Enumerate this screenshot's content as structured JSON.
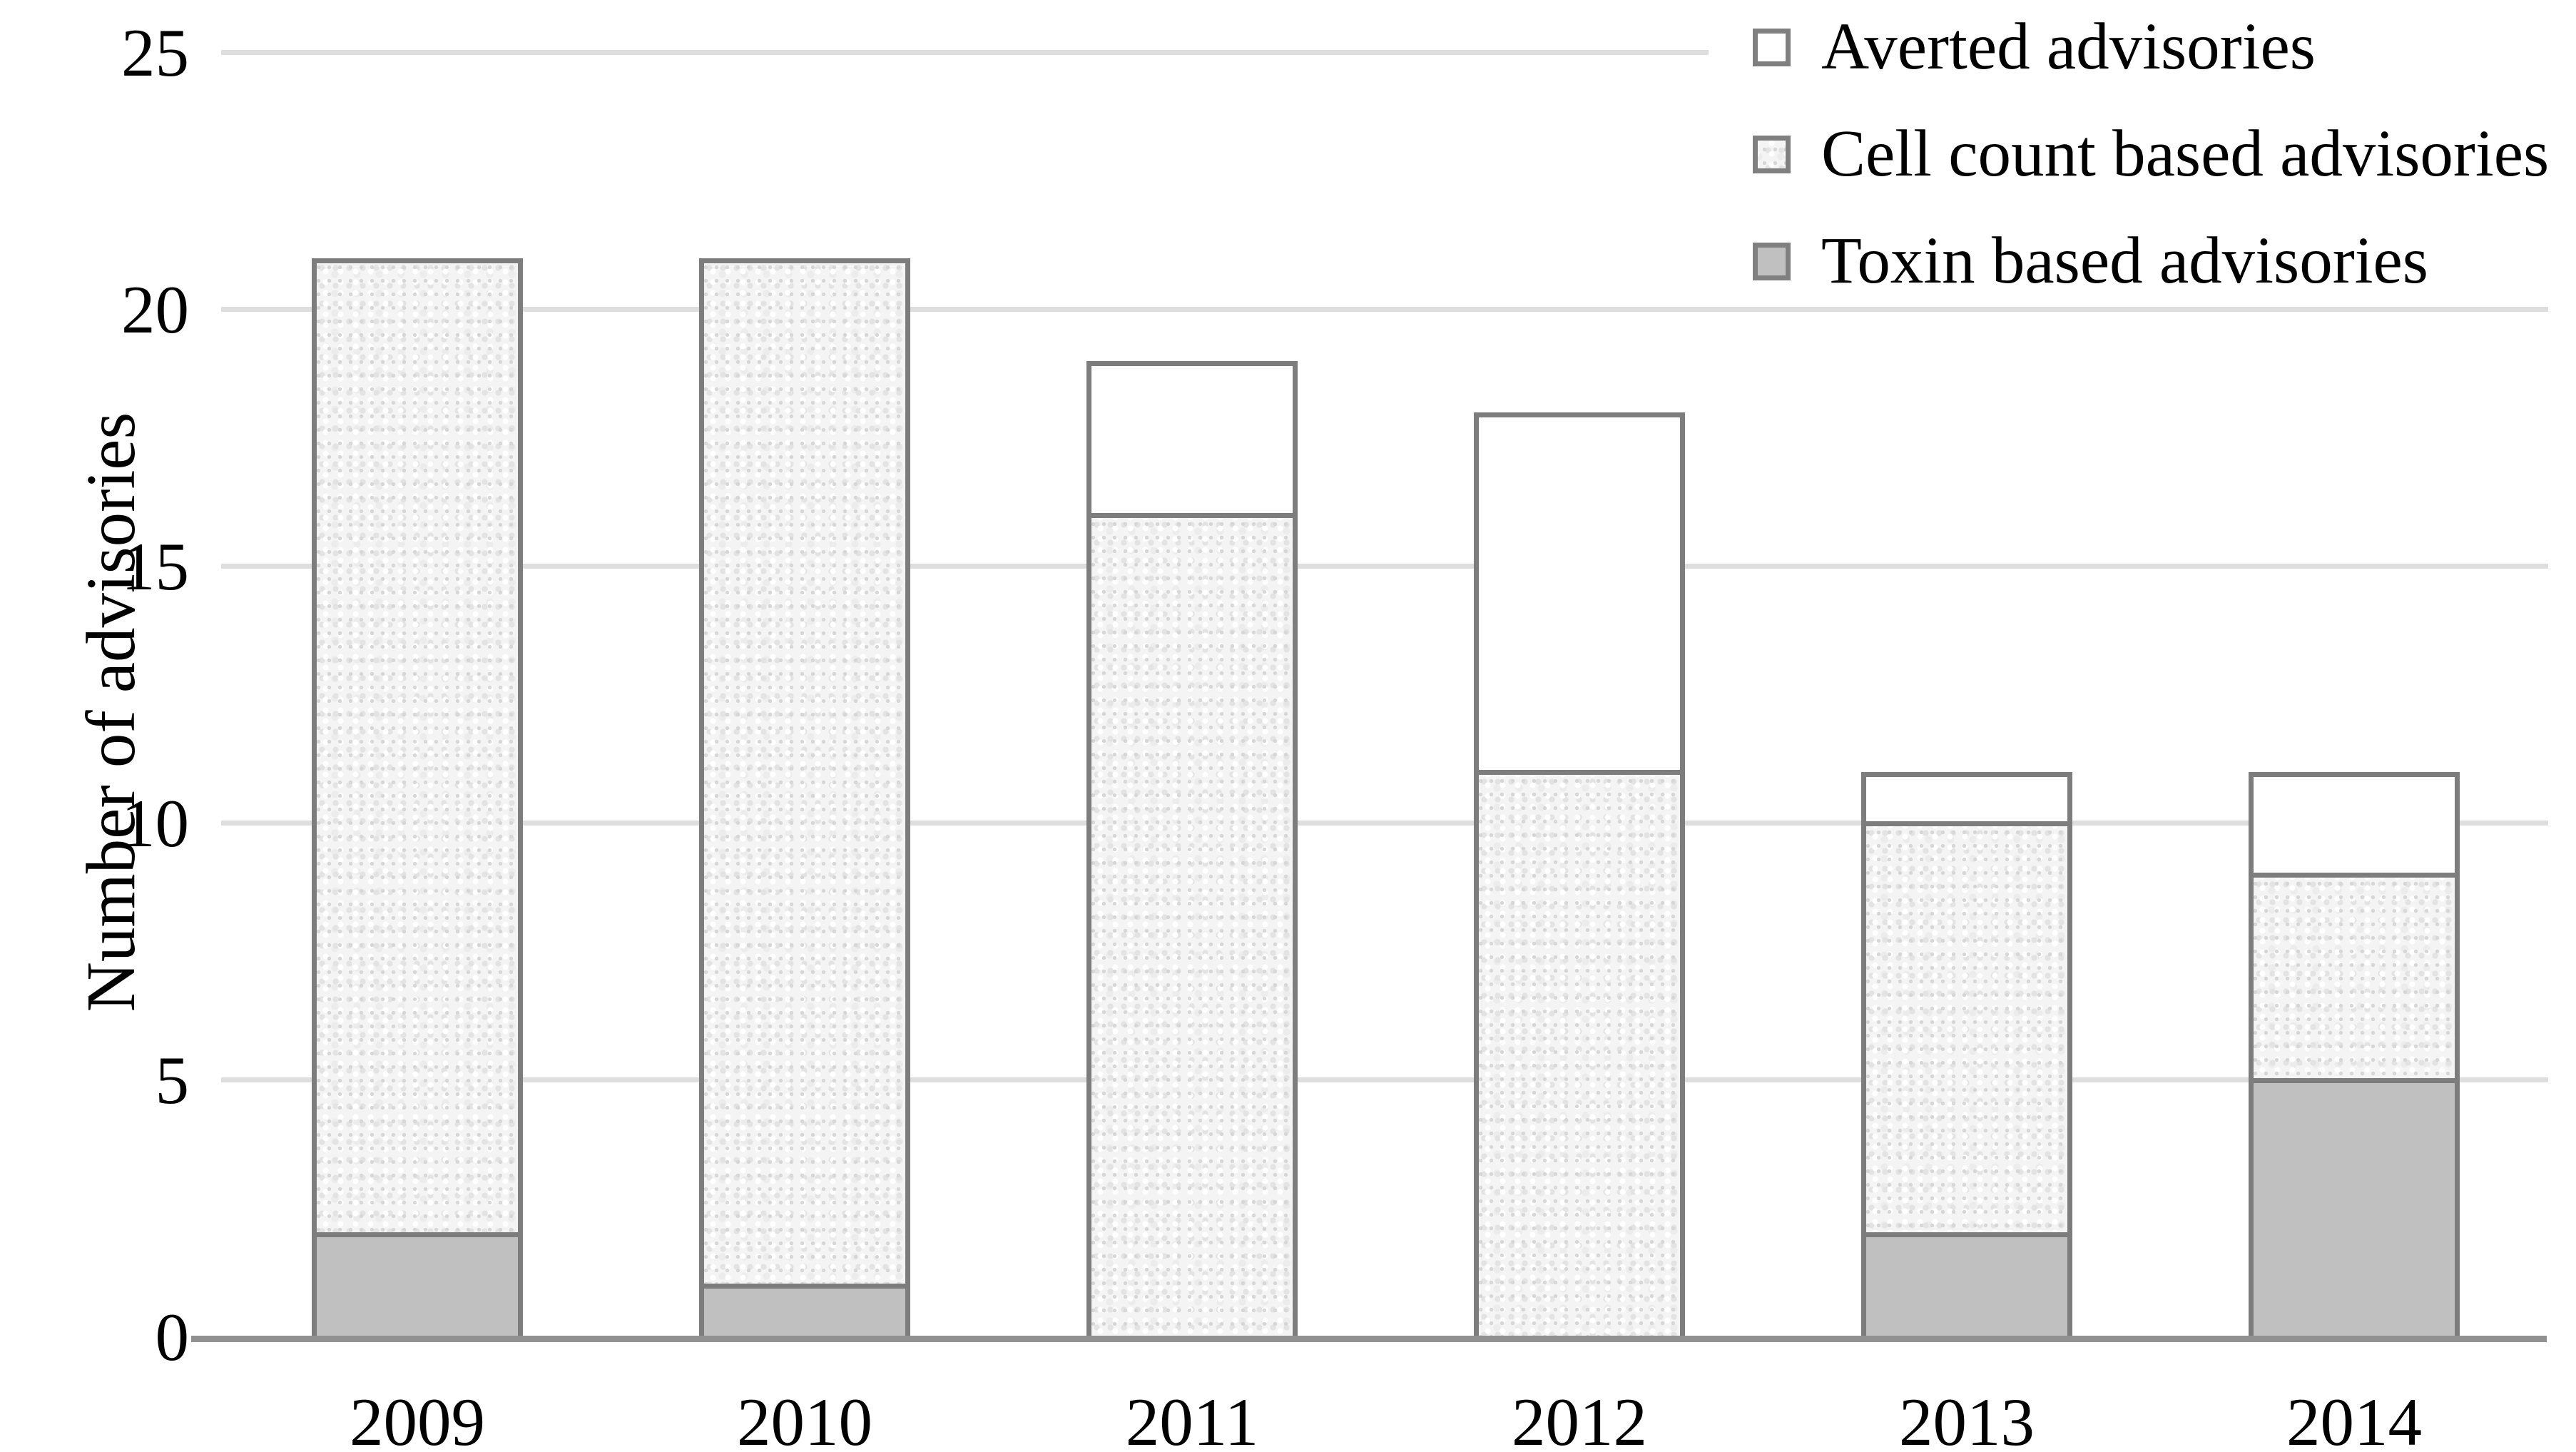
{
  "y_axis": {
    "title": "Number of advisories",
    "tick_labels": [
      "0",
      "5",
      "10",
      "15",
      "20",
      "25"
    ]
  },
  "x_axis": {
    "categories": [
      "2009",
      "2010",
      "2011",
      "2012",
      "2013",
      "2014"
    ]
  },
  "legend": {
    "items": [
      {
        "label": "Averted advisories",
        "swatch": "averted"
      },
      {
        "label": "Cell count based advisories",
        "swatch": "cell"
      },
      {
        "label": "Toxin based advisories",
        "swatch": "toxin"
      }
    ]
  },
  "chart_data": {
    "type": "bar",
    "stacked": true,
    "categories": [
      "2009",
      "2010",
      "2011",
      "2012",
      "2013",
      "2014"
    ],
    "series": [
      {
        "name": "Toxin based advisories",
        "key": "toxin",
        "values": [
          2,
          1,
          0,
          0,
          2,
          5
        ]
      },
      {
        "name": "Cell count based advisories",
        "key": "cell",
        "values": [
          19,
          20,
          16,
          11,
          8,
          4
        ]
      },
      {
        "name": "Averted advisories",
        "key": "averted",
        "values": [
          0,
          0,
          3,
          7,
          1,
          2
        ]
      }
    ],
    "stack_totals": [
      21,
      21,
      19,
      18,
      11,
      11
    ],
    "title": "",
    "xlabel": "",
    "ylabel": "Number of advisories",
    "ylim": [
      0,
      25
    ],
    "yticks": [
      0,
      5,
      10,
      15,
      20,
      25
    ],
    "grid": true,
    "legend_position": "top-right"
  },
  "colors": {
    "toxin_fill": "#c0c0c0",
    "averted_fill": "#ffffff",
    "cell_fill_base": "#f4f4f4",
    "bar_outline": "#7d7d7d",
    "gridline": "#dedede",
    "axis_line": "#919191",
    "legend_swatch_border": "#808080",
    "text": "#000000"
  }
}
